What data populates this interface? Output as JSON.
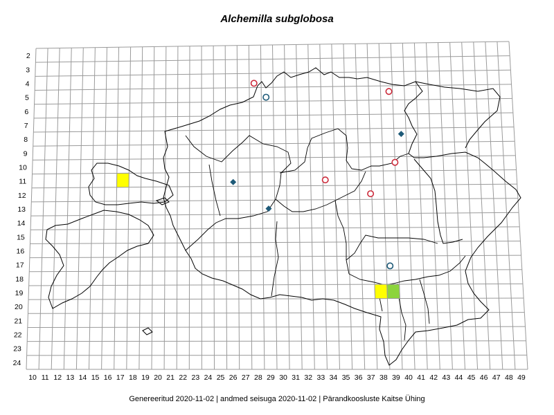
{
  "title": "Alchemilla subglobosa",
  "footer": "Genereeritud 2020-11-02  |  andmed seisuga 2020-11-02  |  Pärandkoosluste Kaitse Ühing",
  "grid": {
    "columns": [
      "10",
      "11",
      "12",
      "13",
      "14",
      "15",
      "16",
      "17",
      "18",
      "19",
      "20",
      "21",
      "22",
      "23",
      "24",
      "25",
      "26",
      "27",
      "28",
      "29",
      "30",
      "31",
      "32",
      "33",
      "34",
      "35",
      "36",
      "37",
      "38",
      "39",
      "40",
      "41",
      "42",
      "43",
      "44",
      "45",
      "46",
      "47",
      "48",
      "49"
    ],
    "rows": [
      "2",
      "3",
      "4",
      "5",
      "6",
      "7",
      "8",
      "9",
      "10",
      "11",
      "12",
      "13",
      "14",
      "15",
      "16",
      "17",
      "18",
      "19",
      "20",
      "21",
      "22",
      "23",
      "24"
    ]
  },
  "colors": {
    "grid": "#9a9a9a",
    "outline": "#000000",
    "red_circle": "#cc2a3a",
    "blue_circle": "#1e5a78",
    "diamond": "#1e5a78",
    "yellow_cell": "#ffff00",
    "green_cell": "#8cd43c"
  },
  "observations": {
    "red_circles": [
      {
        "col": 27.9,
        "row": 4.2
      },
      {
        "col": 39.2,
        "row": 4.9
      },
      {
        "col": 39.5,
        "row": 9.9
      },
      {
        "col": 33.7,
        "row": 11.1
      },
      {
        "col": 37.4,
        "row": 12.1
      }
    ],
    "blue_circles": [
      {
        "col": 28.9,
        "row": 5.2
      },
      {
        "col": 38.8,
        "row": 17.2
      }
    ],
    "diamonds": [
      {
        "col": 40.1,
        "row": 7.9
      },
      {
        "col": 26.1,
        "row": 11.2
      },
      {
        "col": 29.0,
        "row": 13.1
      }
    ],
    "cells": [
      {
        "col": 17,
        "row": 11,
        "fill": "yellow_cell"
      },
      {
        "col": 38,
        "row": 19,
        "fill": "yellow_cell"
      },
      {
        "col": 39,
        "row": 19,
        "fill": "green_cell"
      }
    ]
  }
}
